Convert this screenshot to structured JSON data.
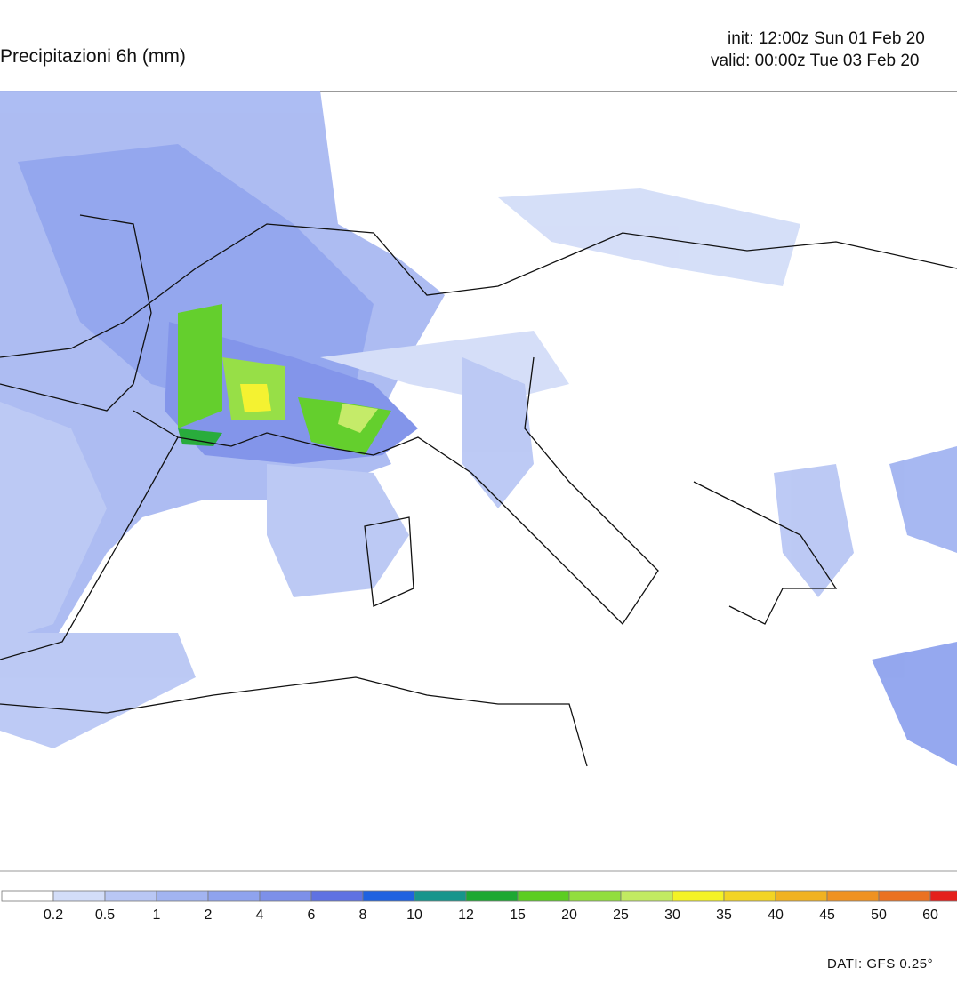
{
  "header": {
    "title": "Precipitazioni 6h (mm)",
    "init": "init: 12:00z Sun 01 Feb 20",
    "valid": "valid: 00:00z Tue 03 Feb 20"
  },
  "legend": {
    "levels": [
      0.2,
      0.5,
      1,
      2,
      4,
      6,
      8,
      10,
      12,
      15,
      20,
      25,
      30,
      35,
      40,
      45,
      50,
      60
    ],
    "colors": [
      "#ffffff",
      "#d3ddf8",
      "#b9c7f4",
      "#a2b4f1",
      "#8fa3ee",
      "#7d90e9",
      "#5f72e2",
      "#1f62e0",
      "#17958c",
      "#1ea832",
      "#5ccd22",
      "#92de3e",
      "#c2ea62",
      "#f4f226",
      "#f2d424",
      "#f1b222",
      "#ef9222",
      "#ea7222",
      "#e4201c"
    ]
  },
  "footer": {
    "source": "DATI: GFS 0.25°"
  }
}
